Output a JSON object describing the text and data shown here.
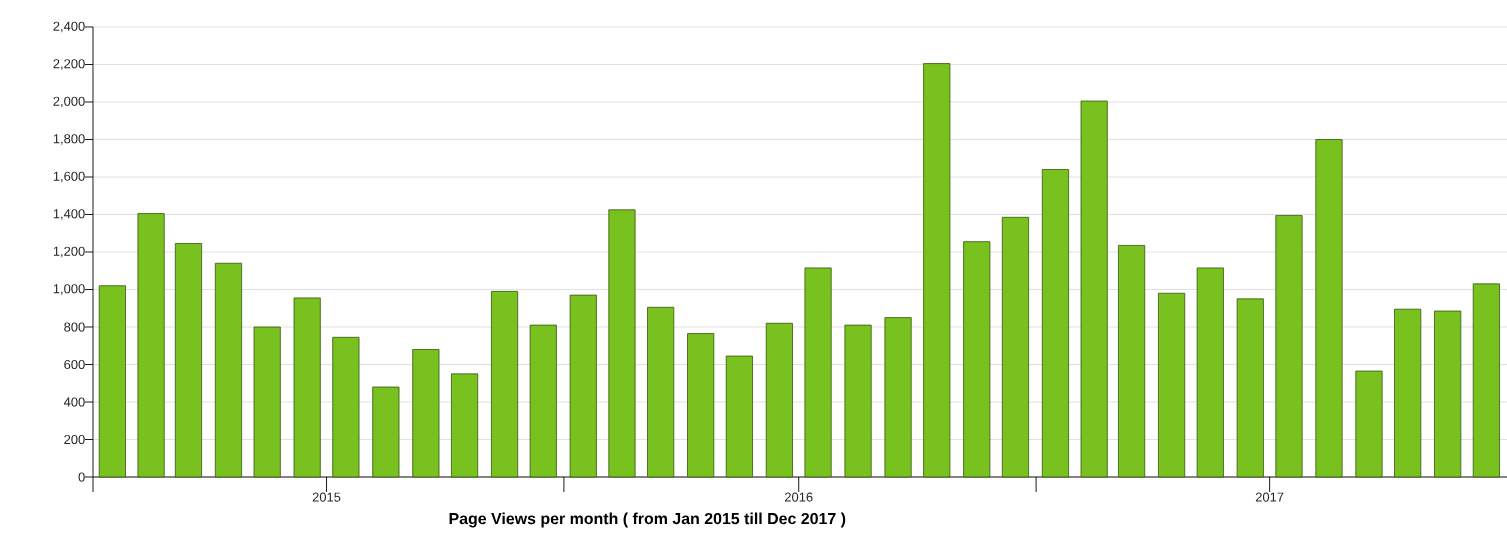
{
  "chart_data": {
    "type": "bar",
    "xlabel": "Page Views per month ( from Jan 2015 till Dec 2017 )",
    "x": [
      "2015-01-16",
      "2015-02-15",
      "2015-03-16",
      "2015-04-16",
      "2015-05-16",
      "2015-06-16",
      "2015-07-16",
      "2015-08-16",
      "2015-09-16",
      "2015-10-16",
      "2015-11-16",
      "2015-12-16",
      "2016-01-16",
      "2016-02-15",
      "2016-03-16",
      "2016-04-16",
      "2016-05-16",
      "2016-06-16",
      "2016-07-16",
      "2016-08-16",
      "2016-09-16",
      "2016-10-16",
      "2016-11-16",
      "2016-12-16",
      "2017-01-16",
      "2017-02-15",
      "2017-03-16",
      "2017-04-16",
      "2017-05-16",
      "2017-06-16",
      "2017-07-16",
      "2017-08-16",
      "2017-09-16",
      "2017-10-16",
      "2017-11-16",
      "2017-12-16"
    ],
    "values": [
      1020,
      1405,
      1245,
      1140,
      800,
      955,
      745,
      480,
      680,
      550,
      990,
      810,
      970,
      1425,
      905,
      765,
      645,
      820,
      1115,
      810,
      850,
      2205,
      1255,
      1385,
      1640,
      2005,
      1235,
      980,
      1115,
      950,
      1395,
      1800,
      565,
      895,
      885,
      1030
    ],
    "color": "#78c11e",
    "xlim": [
      "2015-01",
      "2018-01"
    ],
    "xticks": [
      {
        "value": "2015-01",
        "label": null
      },
      {
        "value": "2016-01",
        "label": null
      },
      {
        "value": "2017-01",
        "label": null
      },
      {
        "value": "2015-07",
        "label": "2015"
      },
      {
        "value": "2016-07",
        "label": "2016"
      },
      {
        "value": "2017-07",
        "label": "2017"
      }
    ],
    "ylim": [
      0,
      2400
    ],
    "yticks": [
      0,
      200,
      400,
      600,
      800,
      {
        "value": 1000,
        "label": "1,000"
      },
      {
        "value": 1200,
        "label": "1,200"
      },
      {
        "value": 1400,
        "label": "1,400"
      },
      {
        "value": 1600,
        "label": "1,600"
      },
      {
        "value": 1800,
        "label": "1,800"
      },
      {
        "value": 2000,
        "label": "2,000"
      },
      {
        "value": 2200,
        "label": "2,200"
      },
      {
        "value": 2400,
        "label": "2,400"
      }
    ],
    "grid": "y"
  }
}
